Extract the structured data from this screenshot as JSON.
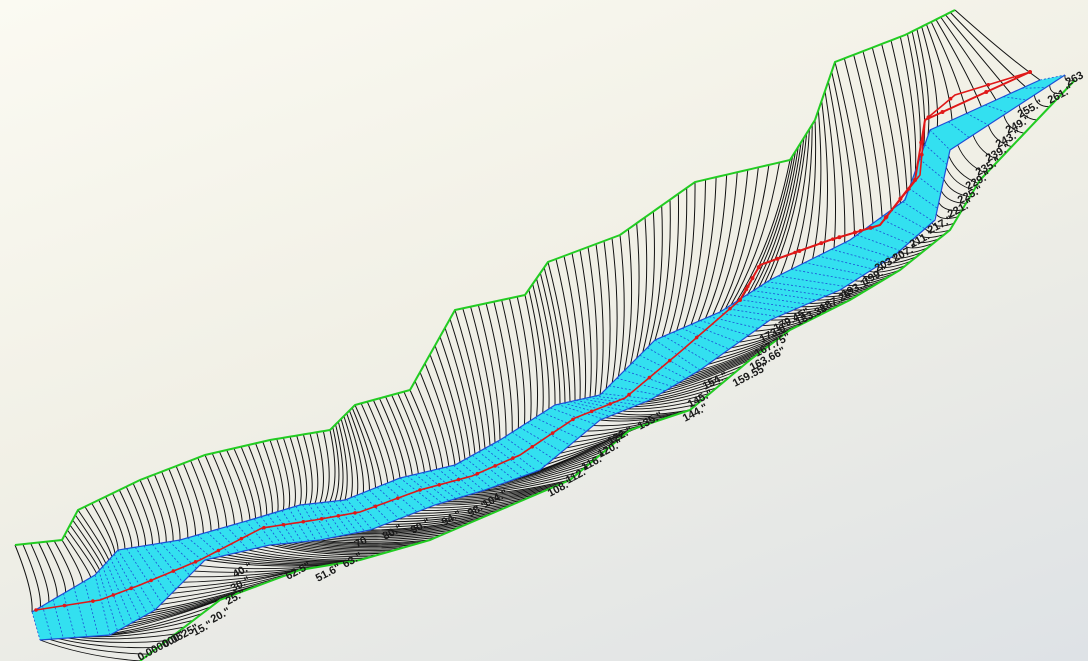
{
  "view": {
    "name": "3D river channel cross-section view",
    "colors": {
      "background": "#f6f5ec",
      "terrain_lines": "#111111",
      "top_of_bank": "#22cc22",
      "water_surface": "#33e0f0",
      "water_hatch": "#1d4fd6",
      "flow_line": "#e01818",
      "label_text": "#1a1a1a"
    }
  },
  "labels": {
    "top": "263",
    "s1": "0.000000\"",
    "s2": "0.0525\"",
    "s3": "15.\"",
    "s4": "20.\"",
    "s5": "25.\"",
    "s6": "30.\"",
    "s7": "40.\"",
    "s8": "51.6\"",
    "s9": "62.5\"",
    "s10": "63.\"",
    "s11": "70",
    "s12": "80.\"",
    "s13": "90.\"",
    "s14": "94.\"",
    "s15": "98.\"",
    "s16": "104.\"",
    "s17": "108.\"",
    "s18": "112.\"",
    "s19": "116.\"",
    "s20": "120.\"",
    "s21": "122.\"",
    "s22": "135.\"",
    "s23": "144.\"",
    "s24": "145.\"",
    "s25": "154.\"",
    "s26": "159.55\"",
    "s27": "163.66\"",
    "s28": "167.75\"",
    "s29": "173.6\"",
    "s30": "179.45\"",
    "s31": "183.38\"",
    "s32": "187.25\"",
    "s33": "193.1\"",
    "s34": "199.\"",
    "s35": "203.\"",
    "s36": "207.\"",
    "s37": "211.\"",
    "s38": "217.\"",
    "s39": "221.\"",
    "s40": "225.\"",
    "s41": "229.\"",
    "s42": "235.\"",
    "s43": "239.\"",
    "s44": "243.\"",
    "s45": "249.\"",
    "s46": "255.\"",
    "s47": "261.\""
  }
}
